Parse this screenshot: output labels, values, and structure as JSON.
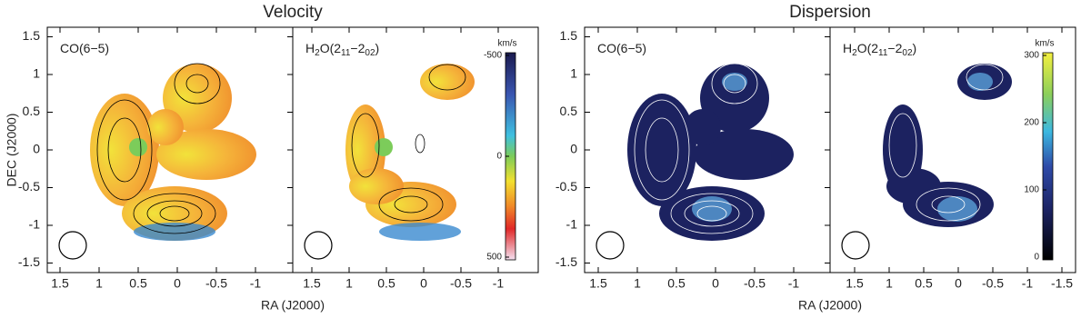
{
  "figure": {
    "y_label": "DEC (J2000)",
    "y_ticks": [
      "1.5",
      "1",
      "0.5",
      "0",
      "-0.5",
      "-1",
      "-1.5"
    ],
    "groups": [
      {
        "title": "Velocity",
        "x_label": "RA (J2000)",
        "panels": [
          {
            "label": [
              "CO(6−5)"
            ],
            "x_ticks": [
              "1.5",
              "1",
              "0.5",
              "0",
              "-0.5",
              "-1"
            ]
          },
          {
            "label": [
              "H",
              "2",
              "O(2",
              "11",
              "−2",
              "02",
              ")"
            ],
            "x_ticks": [
              "1.5",
              "1",
              "0.5",
              "0",
              "-0.5",
              "-1"
            ]
          }
        ],
        "colorbar": {
          "unit": "km/s",
          "ticks": [
            "-500",
            "0",
            "500"
          ]
        }
      },
      {
        "title": "Dispersion",
        "x_label": "RA (J2000)",
        "panels": [
          {
            "label": [
              "CO(6−5)"
            ],
            "x_ticks": [
              "1.5",
              "1",
              "0.5",
              "0",
              "-0.5",
              "-1"
            ]
          },
          {
            "label": [
              "H",
              "2",
              "O(2",
              "11",
              "−2",
              "02",
              ")"
            ],
            "x_ticks": [
              "1.5",
              "1",
              "0.5",
              "0",
              "-0.5",
              "-1",
              "-1.5"
            ]
          }
        ],
        "colorbar": {
          "unit": "km/s",
          "ticks": [
            "300",
            "200",
            "100",
            "0"
          ]
        }
      }
    ]
  }
}
